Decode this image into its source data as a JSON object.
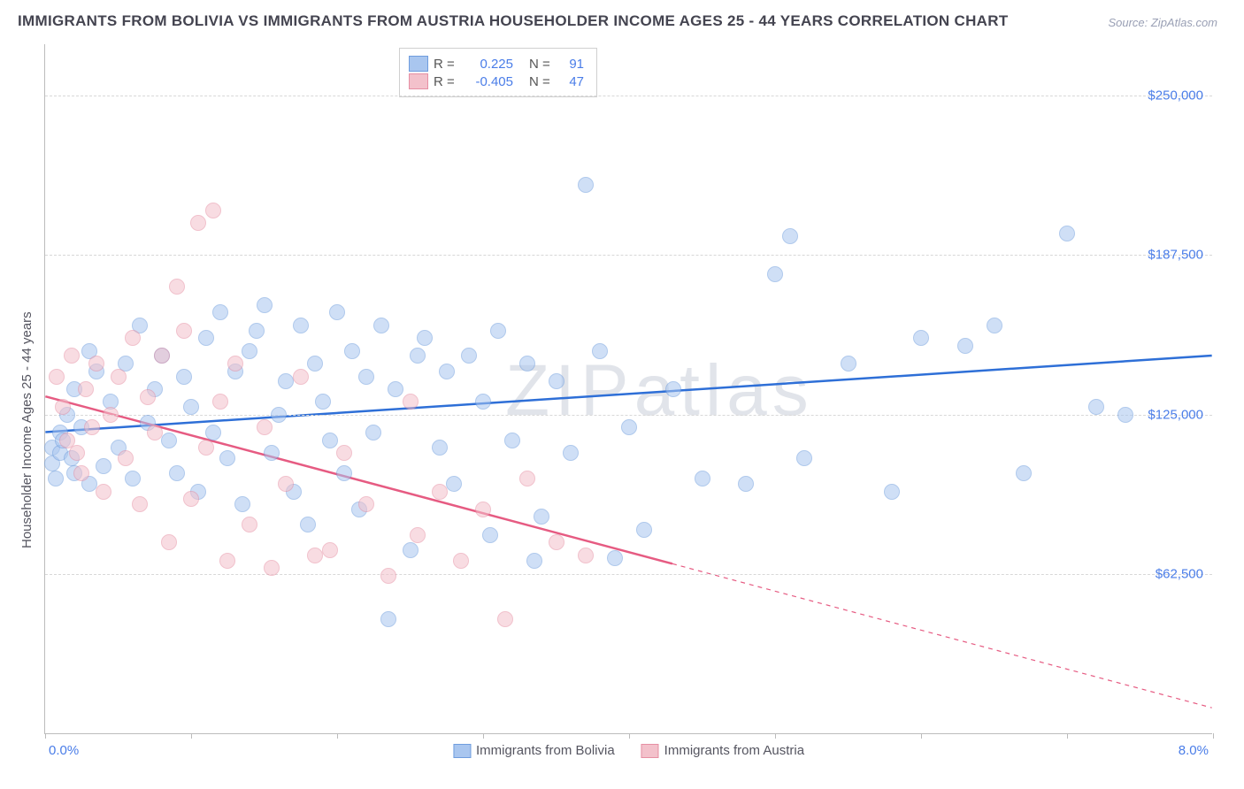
{
  "title": "IMMIGRANTS FROM BOLIVIA VS IMMIGRANTS FROM AUSTRIA HOUSEHOLDER INCOME AGES 25 - 44 YEARS CORRELATION CHART",
  "source": "Source: ZipAtlas.com",
  "watermark": "ZIPatlas",
  "ylabel": "Householder Income Ages 25 - 44 years",
  "chart": {
    "type": "scatter",
    "xlim": [
      0,
      8
    ],
    "ylim": [
      0,
      270000
    ],
    "xtick_step": 1,
    "yticks": [
      62500,
      125000,
      187500,
      250000
    ],
    "ytick_labels": [
      "$62,500",
      "$125,000",
      "$187,500",
      "$250,000"
    ],
    "xmin_label": "0.0%",
    "xmax_label": "8.0%",
    "background_color": "#ffffff",
    "grid_color": "#d8d8d8",
    "marker_radius": 9,
    "marker_opacity": 0.55,
    "line_width": 2.5
  },
  "series": [
    {
      "name": "Immigrants from Bolivia",
      "color_fill": "#a9c6ef",
      "color_stroke": "#6f9dde",
      "line_color": "#2e6fd7",
      "R": "0.225",
      "N": "91",
      "trend": {
        "x1": 0,
        "y1": 118000,
        "x2": 8,
        "y2": 148000,
        "dash_after_x": null
      },
      "points": [
        [
          0.05,
          112000
        ],
        [
          0.05,
          106000
        ],
        [
          0.07,
          100000
        ],
        [
          0.1,
          110000
        ],
        [
          0.1,
          118000
        ],
        [
          0.12,
          115000
        ],
        [
          0.15,
          125000
        ],
        [
          0.18,
          108000
        ],
        [
          0.2,
          102000
        ],
        [
          0.2,
          135000
        ],
        [
          0.25,
          120000
        ],
        [
          0.3,
          98000
        ],
        [
          0.3,
          150000
        ],
        [
          0.35,
          142000
        ],
        [
          0.4,
          105000
        ],
        [
          0.45,
          130000
        ],
        [
          0.5,
          112000
        ],
        [
          0.55,
          145000
        ],
        [
          0.6,
          100000
        ],
        [
          0.65,
          160000
        ],
        [
          0.7,
          122000
        ],
        [
          0.75,
          135000
        ],
        [
          0.8,
          148000
        ],
        [
          0.85,
          115000
        ],
        [
          0.9,
          102000
        ],
        [
          0.95,
          140000
        ],
        [
          1.0,
          128000
        ],
        [
          1.05,
          95000
        ],
        [
          1.1,
          155000
        ],
        [
          1.15,
          118000
        ],
        [
          1.2,
          165000
        ],
        [
          1.25,
          108000
        ],
        [
          1.3,
          142000
        ],
        [
          1.35,
          90000
        ],
        [
          1.4,
          150000
        ],
        [
          1.45,
          158000
        ],
        [
          1.5,
          168000
        ],
        [
          1.55,
          110000
        ],
        [
          1.6,
          125000
        ],
        [
          1.65,
          138000
        ],
        [
          1.7,
          95000
        ],
        [
          1.75,
          160000
        ],
        [
          1.8,
          82000
        ],
        [
          1.85,
          145000
        ],
        [
          1.9,
          130000
        ],
        [
          1.95,
          115000
        ],
        [
          2.0,
          165000
        ],
        [
          2.05,
          102000
        ],
        [
          2.1,
          150000
        ],
        [
          2.15,
          88000
        ],
        [
          2.2,
          140000
        ],
        [
          2.25,
          118000
        ],
        [
          2.3,
          160000
        ],
        [
          2.35,
          45000
        ],
        [
          2.4,
          135000
        ],
        [
          2.5,
          72000
        ],
        [
          2.55,
          148000
        ],
        [
          2.6,
          155000
        ],
        [
          2.7,
          112000
        ],
        [
          2.75,
          142000
        ],
        [
          2.8,
          98000
        ],
        [
          2.9,
          148000
        ],
        [
          3.0,
          130000
        ],
        [
          3.05,
          78000
        ],
        [
          3.1,
          158000
        ],
        [
          3.2,
          115000
        ],
        [
          3.3,
          145000
        ],
        [
          3.35,
          68000
        ],
        [
          3.4,
          85000
        ],
        [
          3.5,
          138000
        ],
        [
          3.6,
          110000
        ],
        [
          3.7,
          215000
        ],
        [
          3.8,
          150000
        ],
        [
          3.9,
          69000
        ],
        [
          4.0,
          120000
        ],
        [
          4.1,
          80000
        ],
        [
          4.3,
          135000
        ],
        [
          4.5,
          100000
        ],
        [
          4.8,
          98000
        ],
        [
          5.0,
          180000
        ],
        [
          5.1,
          195000
        ],
        [
          5.2,
          108000
        ],
        [
          5.5,
          145000
        ],
        [
          5.8,
          95000
        ],
        [
          6.0,
          155000
        ],
        [
          6.3,
          152000
        ],
        [
          6.5,
          160000
        ],
        [
          6.7,
          102000
        ],
        [
          7.0,
          196000
        ],
        [
          7.2,
          128000
        ],
        [
          7.4,
          125000
        ]
      ]
    },
    {
      "name": "Immigrants from Austria",
      "color_fill": "#f3c1cb",
      "color_stroke": "#e68fa3",
      "line_color": "#e65b82",
      "R": "-0.405",
      "N": "47",
      "trend": {
        "x1": 0,
        "y1": 132000,
        "x2": 8,
        "y2": 10000,
        "dash_after_x": 4.3
      },
      "points": [
        [
          0.08,
          140000
        ],
        [
          0.12,
          128000
        ],
        [
          0.15,
          115000
        ],
        [
          0.18,
          148000
        ],
        [
          0.22,
          110000
        ],
        [
          0.25,
          102000
        ],
        [
          0.28,
          135000
        ],
        [
          0.32,
          120000
        ],
        [
          0.35,
          145000
        ],
        [
          0.4,
          95000
        ],
        [
          0.45,
          125000
        ],
        [
          0.5,
          140000
        ],
        [
          0.55,
          108000
        ],
        [
          0.6,
          155000
        ],
        [
          0.65,
          90000
        ],
        [
          0.7,
          132000
        ],
        [
          0.75,
          118000
        ],
        [
          0.8,
          148000
        ],
        [
          0.85,
          75000
        ],
        [
          0.9,
          175000
        ],
        [
          0.95,
          158000
        ],
        [
          1.0,
          92000
        ],
        [
          1.05,
          200000
        ],
        [
          1.1,
          112000
        ],
        [
          1.15,
          205000
        ],
        [
          1.2,
          130000
        ],
        [
          1.25,
          68000
        ],
        [
          1.3,
          145000
        ],
        [
          1.4,
          82000
        ],
        [
          1.5,
          120000
        ],
        [
          1.55,
          65000
        ],
        [
          1.65,
          98000
        ],
        [
          1.75,
          140000
        ],
        [
          1.85,
          70000
        ],
        [
          1.95,
          72000
        ],
        [
          2.05,
          110000
        ],
        [
          2.2,
          90000
        ],
        [
          2.35,
          62000
        ],
        [
          2.5,
          130000
        ],
        [
          2.55,
          78000
        ],
        [
          2.7,
          95000
        ],
        [
          2.85,
          68000
        ],
        [
          3.0,
          88000
        ],
        [
          3.15,
          45000
        ],
        [
          3.3,
          100000
        ],
        [
          3.5,
          75000
        ],
        [
          3.7,
          70000
        ]
      ]
    }
  ],
  "legend_top_labels": {
    "R": "R =",
    "N": "N ="
  },
  "legend_bottom": [
    {
      "text": "Immigrants from Bolivia"
    },
    {
      "text": "Immigrants from Austria"
    }
  ]
}
